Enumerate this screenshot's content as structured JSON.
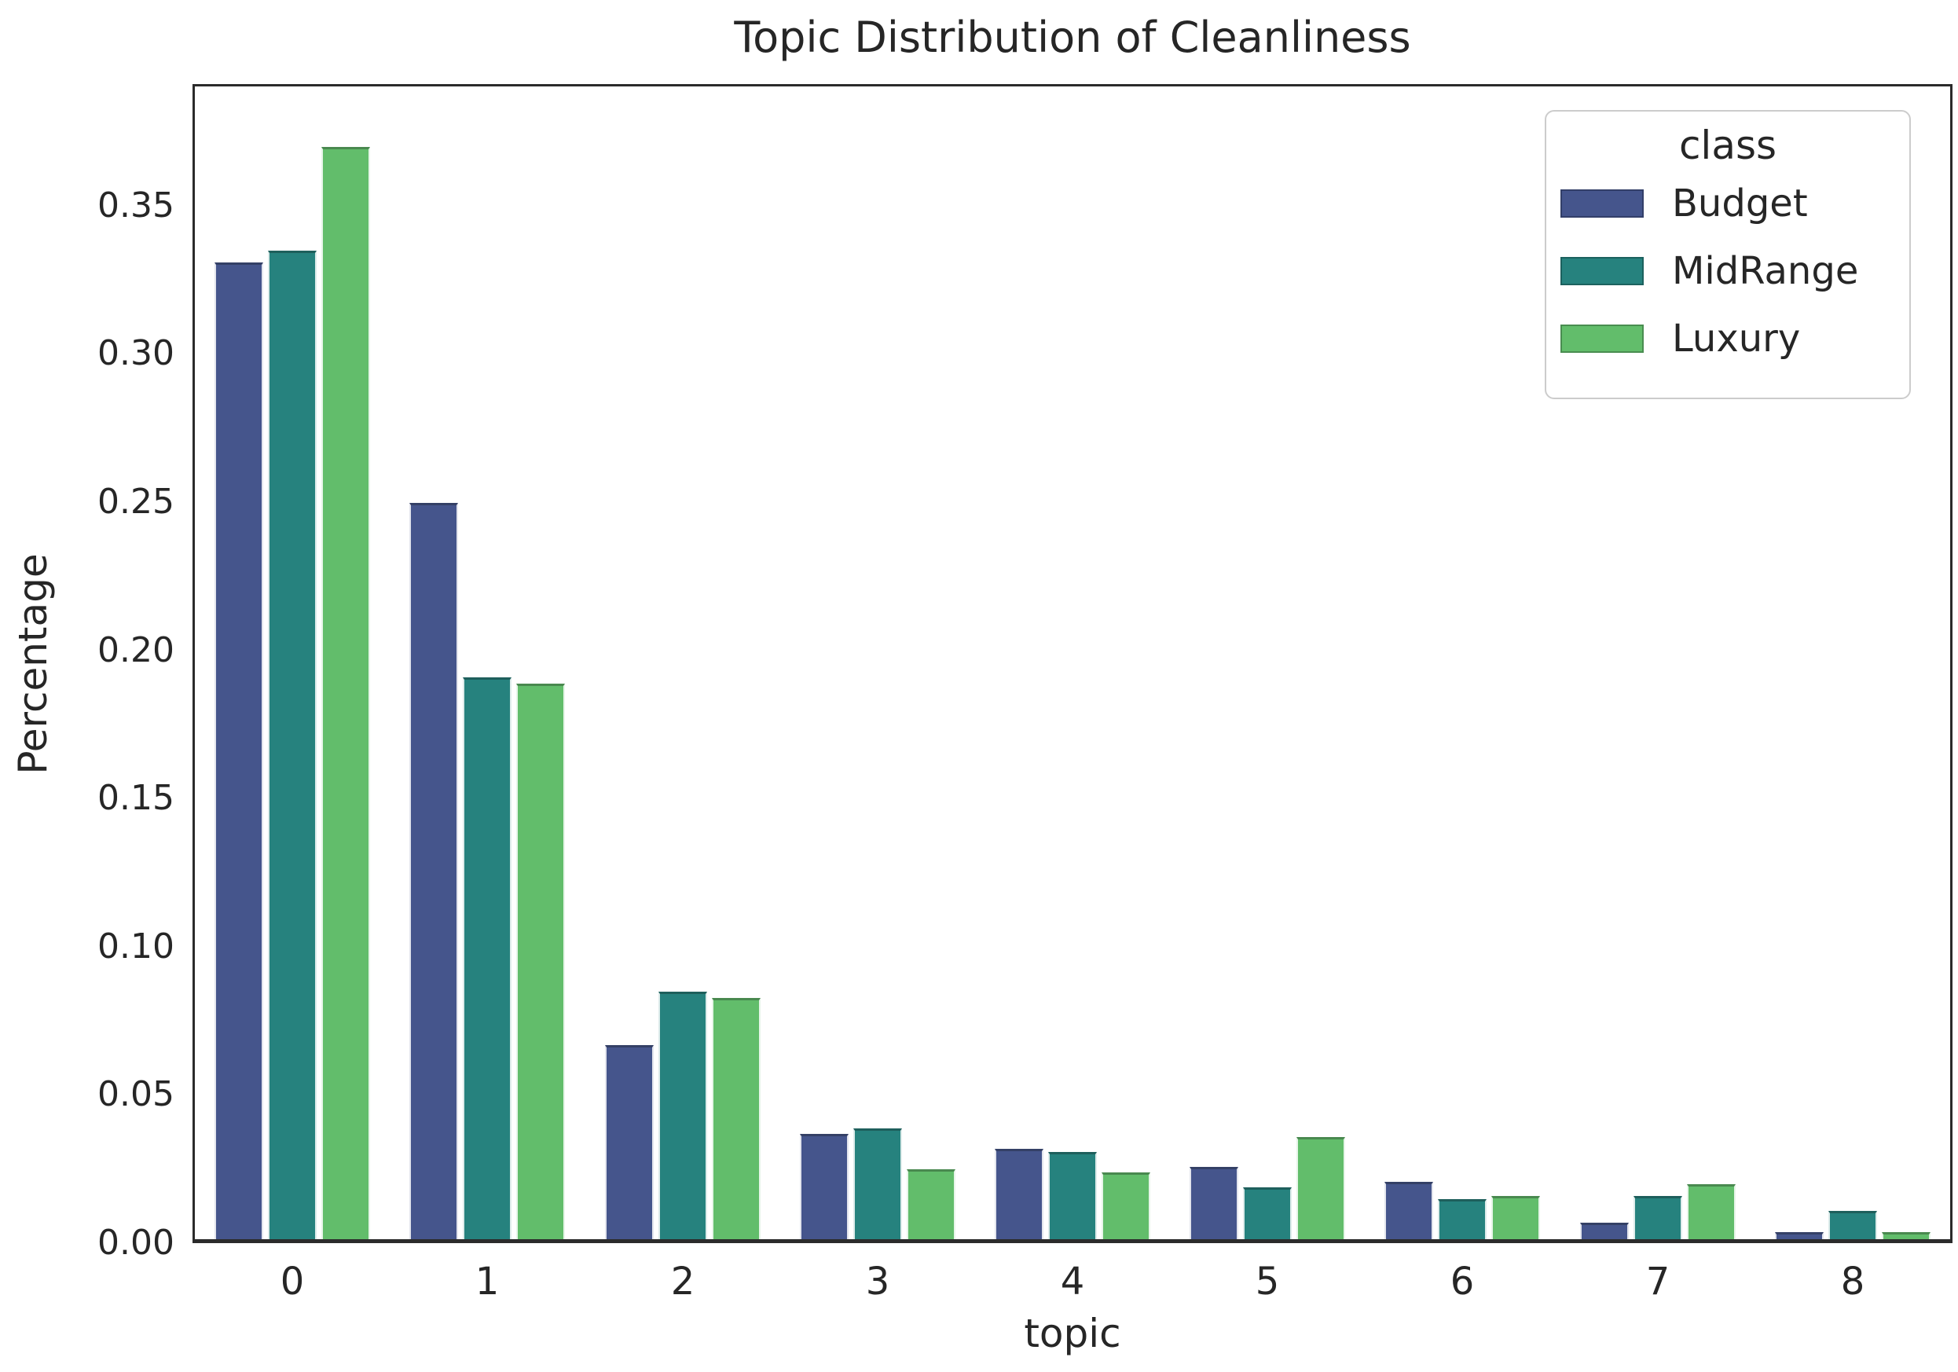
{
  "chart_data": {
    "type": "bar",
    "title": "Topic Distribution of Cleanliness",
    "xlabel": "topic",
    "ylabel": "Percentage",
    "categories": [
      "0",
      "1",
      "2",
      "3",
      "4",
      "5",
      "6",
      "7",
      "8"
    ],
    "series": [
      {
        "name": "Budget",
        "color": "#45558c",
        "values": [
          0.33,
          0.249,
          0.066,
          0.036,
          0.031,
          0.025,
          0.02,
          0.006,
          0.003
        ]
      },
      {
        "name": "MidRange",
        "color": "#26827e",
        "values": [
          0.334,
          0.19,
          0.084,
          0.038,
          0.03,
          0.018,
          0.014,
          0.015,
          0.01
        ]
      },
      {
        "name": "Luxury",
        "color": "#62bd6b",
        "values": [
          0.369,
          0.188,
          0.082,
          0.024,
          0.023,
          0.035,
          0.015,
          0.019,
          0.003
        ]
      }
    ],
    "ylim": [
      0,
      0.391
    ],
    "yticks": [
      0,
      0.05,
      0.1,
      0.15,
      0.2,
      0.25,
      0.3,
      0.35
    ],
    "ytick_labels": [
      "0.00",
      "0.05",
      "0.10",
      "0.15",
      "0.20",
      "0.25",
      "0.30",
      "0.35"
    ],
    "grid": false,
    "legend": {
      "title": "class",
      "position": "upper right",
      "entries": [
        "Budget",
        "MidRange",
        "Luxury"
      ]
    }
  },
  "colors": {
    "text": "#262626",
    "spine": "#2b2b2b",
    "legend_border": "#cccccc",
    "background": "#ffffff"
  }
}
